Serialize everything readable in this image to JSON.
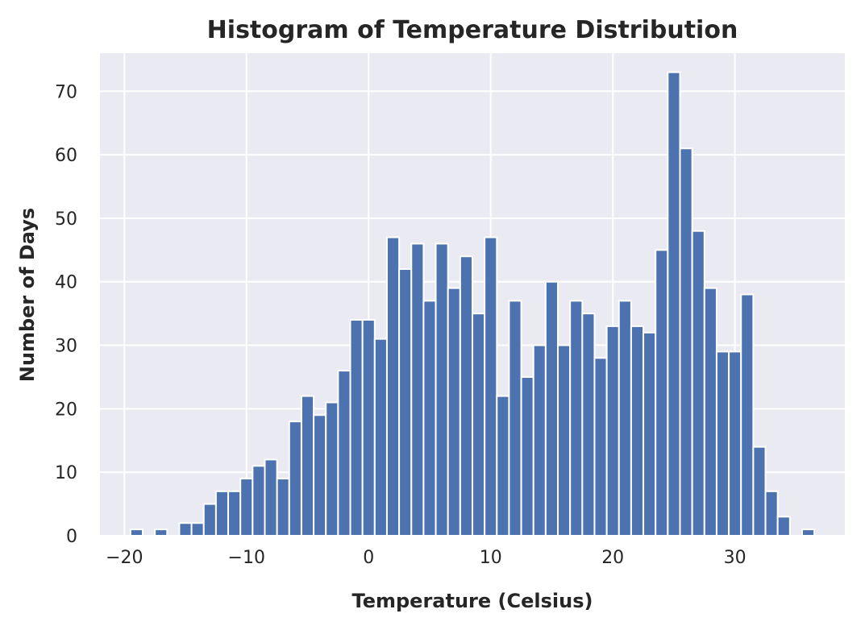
{
  "chart_data": {
    "type": "bar",
    "title": "Histogram of Temperature Distribution",
    "xlabel": "Temperature (Celsius)",
    "ylabel": "Number of Days",
    "xlim": [
      -22,
      39
    ],
    "ylim": [
      0,
      76
    ],
    "xticks": [
      -20,
      -10,
      0,
      10,
      20,
      30
    ],
    "xtick_labels": [
      "−20",
      "−10",
      "0",
      "10",
      "20",
      "30"
    ],
    "yticks": [
      0,
      10,
      20,
      30,
      40,
      50,
      60,
      70
    ],
    "ytick_labels": [
      "0",
      "10",
      "20",
      "30",
      "40",
      "50",
      "60",
      "70"
    ],
    "grid": true,
    "bar_color": "#4c72b0",
    "plot_background": "#eaeaf2",
    "bins": [
      -20,
      -19,
      -18,
      -17,
      -16,
      -15,
      -14,
      -13,
      -12,
      -11,
      -10,
      -9,
      -8,
      -7,
      -6,
      -5,
      -4,
      -3,
      -2,
      -1,
      0,
      1,
      2,
      3,
      4,
      5,
      6,
      7,
      8,
      9,
      10,
      11,
      12,
      13,
      14,
      15,
      16,
      17,
      18,
      19,
      20,
      21,
      22,
      23,
      24,
      25,
      26,
      27,
      28,
      29,
      30,
      31,
      32,
      33,
      34,
      35,
      36
    ],
    "values": [
      0,
      1,
      0,
      1,
      0,
      2,
      2,
      5,
      7,
      7,
      9,
      11,
      12,
      9,
      18,
      22,
      19,
      21,
      26,
      34,
      34,
      31,
      47,
      42,
      46,
      37,
      46,
      39,
      44,
      35,
      47,
      22,
      37,
      25,
      30,
      40,
      30,
      37,
      35,
      28,
      33,
      37,
      33,
      32,
      45,
      73,
      61,
      48,
      39,
      29,
      29,
      38,
      14,
      7,
      3,
      0,
      1
    ]
  }
}
